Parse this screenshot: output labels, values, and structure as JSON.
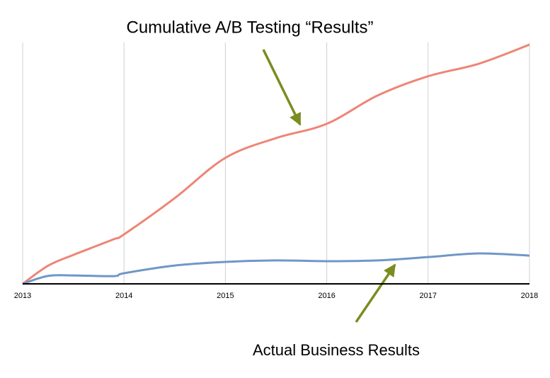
{
  "chart_data": {
    "type": "line",
    "title": "Cumulative A/B Testing “Results”",
    "annotations": [
      "Actual Business Results"
    ],
    "x": [
      2013,
      2013.25,
      2013.5,
      2013.9,
      2014,
      2014.5,
      2015,
      2015.5,
      2016,
      2016.5,
      2017,
      2017.5,
      2018
    ],
    "series": [
      {
        "color": "#ee8576",
        "values": [
          0,
          7.5,
          12,
          18.5,
          20.5,
          35.5,
          52.2,
          60.4,
          66.3,
          78,
          86,
          91.2,
          99.1
        ]
      },
      {
        "color": "#6f97c8",
        "values": [
          0,
          3.3,
          3.5,
          3.2,
          4.4,
          7.6,
          9.1,
          9.7,
          9.4,
          9.7,
          11.1,
          12.6,
          11.7
        ]
      }
    ],
    "xlim": [
      2013,
      2018
    ],
    "xticks": [
      2013,
      2014,
      2015,
      2016,
      2017,
      2018
    ],
    "ylim": [
      0,
      100
    ],
    "grid": true
  }
}
